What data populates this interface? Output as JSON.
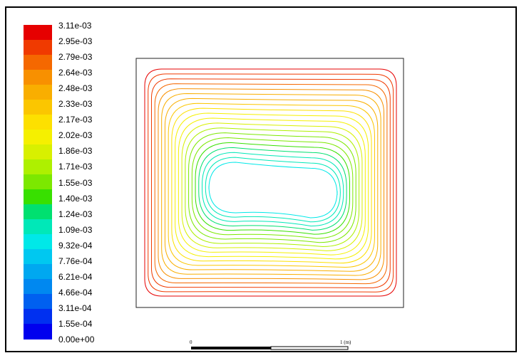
{
  "chart_data": {
    "type": "contour",
    "title": "",
    "colorbar": {
      "labels": [
        "3.11e-03",
        "2.95e-03",
        "2.79e-03",
        "2.64e-03",
        "2.48e-03",
        "2.33e-03",
        "2.17e-03",
        "2.02e-03",
        "1.86e-03",
        "1.71e-03",
        "1.55e-03",
        "1.40e-03",
        "1.24e-03",
        "1.09e-03",
        "9.32e-04",
        "7.76e-04",
        "6.21e-04",
        "4.66e-04",
        "3.11e-04",
        "1.55e-04",
        "0.00e+00"
      ],
      "colors": [
        "#e60000",
        "#f03a00",
        "#f56800",
        "#f89000",
        "#f9ae00",
        "#fbc600",
        "#fde000",
        "#f5f000",
        "#d8f000",
        "#aef000",
        "#7ce800",
        "#38e000",
        "#00e070",
        "#00e8b8",
        "#00e8e8",
        "#00c8f0",
        "#00a8f0",
        "#0088f0",
        "#0060f0",
        "#0030f0",
        "#0000ee"
      ],
      "min": 0.0,
      "max": 0.00311
    },
    "contour_levels": 20,
    "scale_bar": {
      "start_label": "0",
      "end_label": "1 (m)"
    }
  }
}
